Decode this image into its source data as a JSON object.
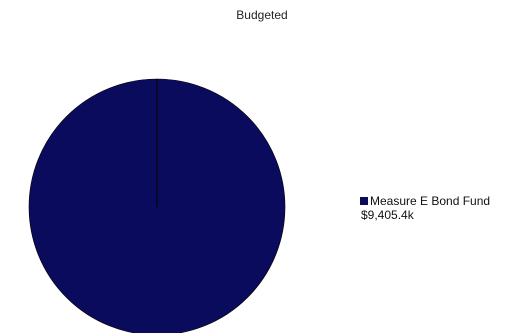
{
  "chart_data": {
    "type": "pie",
    "title": "Budgeted",
    "slices": [
      {
        "label": "Measure E Bond Fund",
        "value": 9405.4,
        "value_label": "$9,405.4k",
        "color": "#0b0b5e"
      }
    ],
    "legend_position": "right"
  }
}
